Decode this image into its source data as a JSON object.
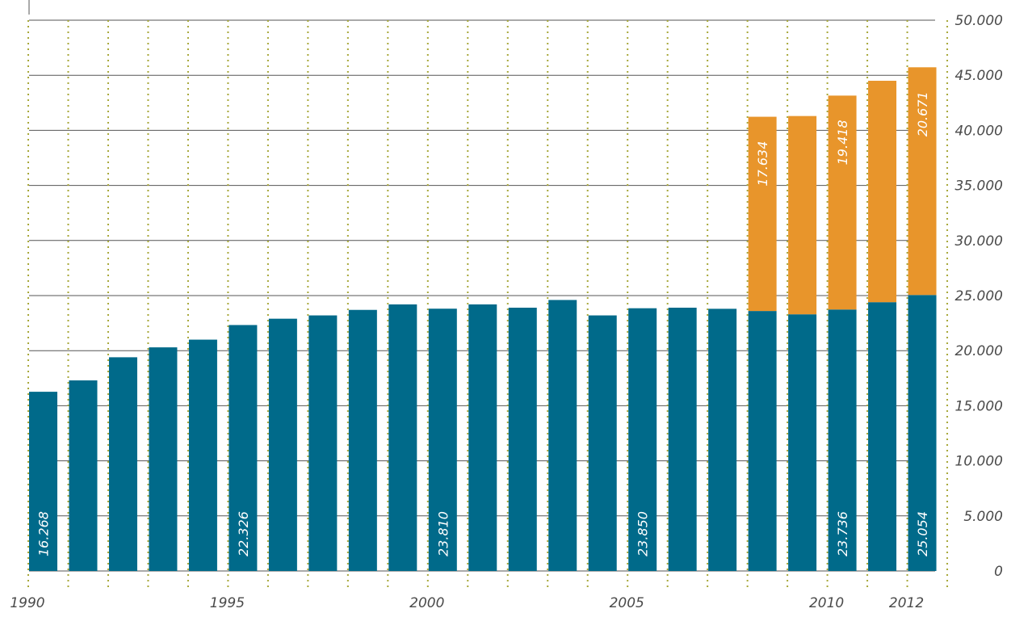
{
  "chart_data": {
    "type": "bar",
    "stacked": true,
    "title": "",
    "xlabel": "",
    "ylabel": "",
    "x": [
      1990,
      1991,
      1992,
      1993,
      1994,
      1995,
      1996,
      1997,
      1998,
      1999,
      2000,
      2001,
      2002,
      2003,
      2004,
      2005,
      2006,
      2007,
      2008,
      2009,
      2010,
      2011,
      2012
    ],
    "x_tick_labels": [
      {
        "x": 1990,
        "label": "1990"
      },
      {
        "x": 1995,
        "label": "1995"
      },
      {
        "x": 2000,
        "label": "2000"
      },
      {
        "x": 2005,
        "label": "2005"
      },
      {
        "x": 2010,
        "label": "2010"
      },
      {
        "x": 2012,
        "label": "2012"
      }
    ],
    "ylim": [
      0,
      50000
    ],
    "y_ticks": [
      0,
      5000,
      10000,
      15000,
      20000,
      25000,
      30000,
      35000,
      40000,
      45000,
      50000
    ],
    "y_tick_labels": [
      "0",
      "5.000",
      "10.000",
      "15.000",
      "20.000",
      "25.000",
      "30.000",
      "35.000",
      "40.000",
      "45.000",
      "50.000"
    ],
    "y_axis_position": "right",
    "grid": {
      "horizontal": true,
      "vertical_dotted": true
    },
    "series": [
      {
        "color": "#006a8a",
        "values": [
          16268,
          17300,
          19400,
          20300,
          21000,
          22326,
          22900,
          23200,
          23700,
          24200,
          23810,
          24200,
          23900,
          24600,
          23200,
          23850,
          23900,
          23800,
          23600,
          23300,
          23736,
          24400,
          25054
        ]
      },
      {
        "color": "#e8952b",
        "values": [
          0,
          0,
          0,
          0,
          0,
          0,
          0,
          0,
          0,
          0,
          0,
          0,
          0,
          0,
          0,
          0,
          0,
          0,
          17634,
          18000,
          19418,
          20100,
          20671
        ]
      }
    ],
    "data_labels": [
      {
        "x": 1990,
        "series": 0,
        "text": "16.268"
      },
      {
        "x": 1995,
        "series": 0,
        "text": "22.326"
      },
      {
        "x": 2000,
        "series": 0,
        "text": "23.810"
      },
      {
        "x": 2005,
        "series": 0,
        "text": "23.850"
      },
      {
        "x": 2010,
        "series": 0,
        "text": "23.736"
      },
      {
        "x": 2012,
        "series": 0,
        "text": "25.054"
      },
      {
        "x": 2008,
        "series": 1,
        "text": "17.634"
      },
      {
        "x": 2010,
        "series": 1,
        "text": "19.418"
      },
      {
        "x": 2012,
        "series": 1,
        "text": "20.671"
      }
    ],
    "colors": {
      "grid": "#555555",
      "dotted": "#a8a83a",
      "text": "#4a4a4a",
      "label": "#ffffff"
    }
  }
}
